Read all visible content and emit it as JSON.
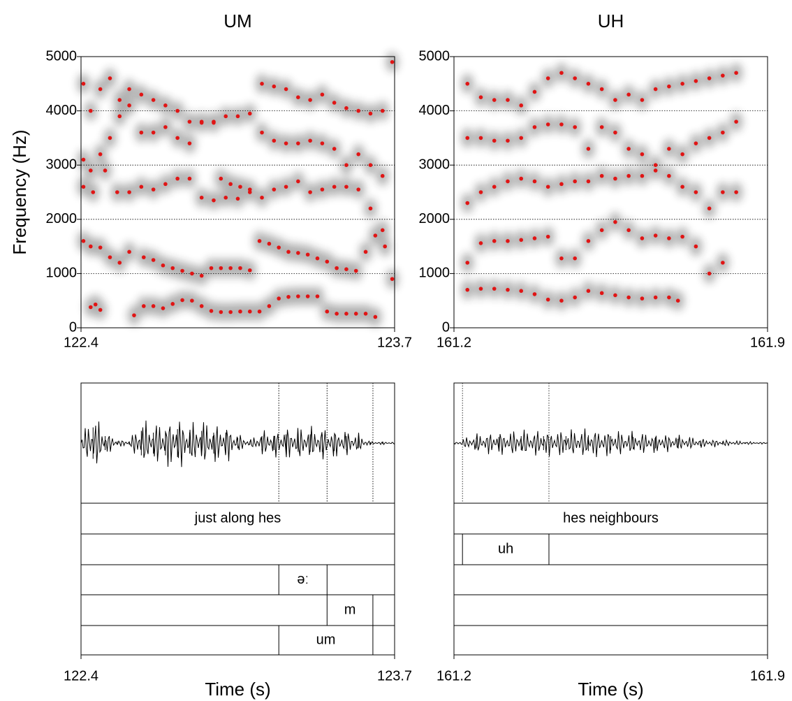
{
  "chart_data": [
    {
      "type": "spectrogram",
      "title": "UM",
      "y_label": "Frequency (Hz)",
      "x_label": "Time (s)",
      "xlim": [
        122.4,
        123.7
      ],
      "xticks": [
        122.4,
        123.7
      ],
      "ylim": [
        0,
        5000
      ],
      "yticks": [
        0,
        1000,
        2000,
        3000,
        4000,
        5000
      ],
      "grid": true,
      "point_color": "#e01515",
      "tracks": [
        {
          "x": [
            122.44,
            122.46,
            122.48,
            122.62,
            122.66,
            122.7,
            122.74,
            122.78,
            122.82,
            122.86,
            122.9,
            122.94,
            122.98,
            123.02,
            123.06,
            123.1,
            123.14,
            123.18,
            123.22,
            123.26,
            123.3,
            123.34,
            123.38,
            123.42,
            123.46,
            123.5,
            123.54,
            123.58,
            123.62
          ],
          "values": [
            380,
            430,
            330,
            230,
            400,
            400,
            360,
            440,
            510,
            500,
            400,
            310,
            290,
            290,
            300,
            300,
            300,
            400,
            540,
            570,
            580,
            580,
            580,
            300,
            260,
            260,
            260,
            260,
            200
          ]
        },
        {
          "x": [
            122.41,
            122.44,
            122.48,
            122.52,
            122.56,
            122.6,
            122.66,
            122.7,
            122.74,
            122.78,
            122.82,
            122.86,
            122.9,
            122.94,
            122.98,
            123.02,
            123.06,
            123.1,
            123.14,
            123.18,
            123.22,
            123.26,
            123.3,
            123.34,
            123.38,
            123.42,
            123.46,
            123.5,
            123.54,
            123.58,
            123.62,
            123.66,
            123.69
          ],
          "values": [
            1600,
            1500,
            1480,
            1300,
            1200,
            1400,
            1300,
            1250,
            1150,
            1100,
            1050,
            1000,
            960,
            1100,
            1100,
            1100,
            1100,
            1060,
            1600,
            1550,
            1480,
            1400,
            1380,
            1350,
            1280,
            1220,
            1100,
            1080,
            1050,
            1400,
            1700,
            1500,
            900
          ]
        },
        {
          "x": [
            122.41,
            122.45,
            122.5,
            122.55,
            122.6,
            122.65,
            122.7,
            122.75,
            122.8,
            122.85,
            122.9,
            122.95,
            123.0,
            123.05,
            123.1,
            123.15,
            123.2,
            123.25,
            123.3,
            123.35,
            123.4,
            123.45,
            123.5,
            123.55,
            123.6,
            123.65
          ],
          "values": [
            2600,
            2500,
            2900,
            2500,
            2500,
            2600,
            2550,
            2650,
            2750,
            2750,
            2400,
            2350,
            2400,
            2380,
            2500,
            2400,
            2550,
            2600,
            2700,
            2500,
            2550,
            2600,
            2600,
            2550,
            2200,
            1800
          ]
        },
        {
          "x": [
            122.98,
            123.02,
            123.06,
            123.1
          ],
          "values": [
            2750,
            2650,
            2600,
            2550
          ]
        },
        {
          "x": [
            122.41,
            122.44,
            122.48,
            122.52,
            122.56,
            122.6,
            122.65,
            122.7,
            122.75,
            122.8,
            122.85,
            122.9,
            122.95,
            123.0,
            123.05,
            123.1,
            123.15,
            123.2,
            123.25,
            123.3,
            123.35,
            123.4,
            123.45,
            123.5,
            123.55,
            123.6,
            123.65
          ],
          "values": [
            3100,
            2900,
            3200,
            3500,
            3900,
            4100,
            3600,
            3600,
            3700,
            3500,
            3400,
            3800,
            3800,
            3900,
            3900,
            3950,
            3600,
            3450,
            3400,
            3400,
            3450,
            3400,
            3300,
            3000,
            3200,
            3000,
            2800
          ]
        },
        {
          "x": [
            122.41,
            122.44,
            122.48,
            122.52,
            122.56,
            122.6,
            122.65,
            122.7,
            122.75,
            122.8,
            122.85,
            122.9,
            122.95,
            123.15,
            123.2,
            123.25,
            123.3,
            123.35,
            123.4,
            123.45,
            123.5,
            123.55,
            123.6,
            123.65,
            123.69
          ],
          "values": [
            4500,
            4000,
            4400,
            4600,
            4200,
            4400,
            4300,
            4200,
            4100,
            4000,
            3800,
            3780,
            3780,
            4500,
            4450,
            4400,
            4250,
            4200,
            4300,
            4150,
            4050,
            4000,
            3950,
            4000,
            4900
          ]
        }
      ],
      "waveform": {
        "x": [
          122.4,
          122.45,
          122.5,
          122.55,
          122.6,
          122.65,
          122.7,
          122.75,
          122.8,
          122.85,
          122.9,
          122.95,
          123.0,
          123.05,
          123.1,
          123.15,
          123.2,
          123.25,
          123.3,
          123.35,
          123.4,
          123.45,
          123.5,
          123.55,
          123.6,
          123.65,
          123.7
        ],
        "values": [
          0.2,
          0.9,
          0.4,
          0.1,
          0.1,
          0.7,
          0.6,
          0.7,
          0.8,
          0.6,
          0.7,
          0.6,
          0.6,
          0.3,
          0.1,
          0.4,
          0.4,
          0.5,
          0.5,
          0.5,
          0.5,
          0.45,
          0.4,
          0.3,
          0.05,
          0.05,
          0.03
        ]
      },
      "tiers": [
        {
          "boundaries": [],
          "intervals": [
            {
              "start": 122.4,
              "end": 123.7,
              "text": "just along hes"
            }
          ]
        },
        {
          "boundaries": [],
          "intervals": []
        },
        {
          "boundaries": [
            123.22,
            123.42
          ],
          "intervals": [
            {
              "start": 123.22,
              "end": 123.42,
              "text": "əː"
            }
          ]
        },
        {
          "boundaries": [
            123.42,
            123.61
          ],
          "intervals": [
            {
              "start": 123.42,
              "end": 123.61,
              "text": "m"
            }
          ]
        },
        {
          "boundaries": [
            123.22,
            123.61
          ],
          "intervals": [
            {
              "start": 123.22,
              "end": 123.61,
              "text": "um"
            }
          ]
        }
      ]
    },
    {
      "type": "spectrogram",
      "title": "UH",
      "x_label": "Time (s)",
      "xlim": [
        161.2,
        161.9
      ],
      "xticks": [
        161.2,
        161.9
      ],
      "ylim": [
        0,
        5000
      ],
      "yticks": [
        0,
        1000,
        2000,
        3000,
        4000,
        5000
      ],
      "grid": true,
      "point_color": "#e01515",
      "tracks": [
        {
          "x": [
            161.23,
            161.26,
            161.29,
            161.32,
            161.35,
            161.38,
            161.41,
            161.44,
            161.47,
            161.5,
            161.53,
            161.56,
            161.59,
            161.62,
            161.65,
            161.68,
            161.7
          ],
          "values": [
            700,
            720,
            720,
            700,
            680,
            620,
            520,
            500,
            560,
            680,
            640,
            600,
            560,
            540,
            560,
            560,
            500
          ]
        },
        {
          "x": [
            161.23,
            161.26,
            161.29,
            161.32,
            161.35,
            161.38,
            161.41,
            161.44,
            161.47,
            161.5,
            161.53,
            161.56,
            161.59,
            161.62,
            161.65,
            161.68,
            161.71,
            161.74,
            161.77,
            161.8
          ],
          "values": [
            1200,
            1560,
            1600,
            1600,
            1620,
            1650,
            1680,
            1280,
            1280,
            1600,
            1800,
            1950,
            1800,
            1650,
            1700,
            1650,
            1680,
            1500,
            1000,
            1200
          ]
        },
        {
          "x": [
            161.23,
            161.26,
            161.29,
            161.32,
            161.35,
            161.38,
            161.41,
            161.44,
            161.47,
            161.5,
            161.53,
            161.56,
            161.59,
            161.62,
            161.65,
            161.68,
            161.71,
            161.74,
            161.77,
            161.8,
            161.83
          ],
          "values": [
            2300,
            2500,
            2600,
            2700,
            2750,
            2700,
            2600,
            2650,
            2700,
            2700,
            2800,
            2750,
            2800,
            2800,
            2900,
            2800,
            2600,
            2500,
            2200,
            2500,
            2500
          ]
        },
        {
          "x": [
            161.23,
            161.26,
            161.29,
            161.32,
            161.35,
            161.38,
            161.41,
            161.44,
            161.47,
            161.5,
            161.53,
            161.56,
            161.59,
            161.62,
            161.65,
            161.68,
            161.71,
            161.74,
            161.77,
            161.8,
            161.83
          ],
          "values": [
            3500,
            3500,
            3450,
            3450,
            3500,
            3700,
            3750,
            3750,
            3700,
            3300,
            3700,
            3600,
            3300,
            3200,
            3000,
            3300,
            3200,
            3400,
            3500,
            3600,
            3800
          ]
        },
        {
          "x": [
            161.23,
            161.26,
            161.29,
            161.32,
            161.35,
            161.38,
            161.41,
            161.44,
            161.47,
            161.5,
            161.53,
            161.56,
            161.59,
            161.62,
            161.65,
            161.68,
            161.71,
            161.74,
            161.77,
            161.8,
            161.83
          ],
          "values": [
            4500,
            4250,
            4200,
            4200,
            4100,
            4350,
            4600,
            4700,
            4600,
            4500,
            4400,
            4200,
            4300,
            4200,
            4400,
            4450,
            4500,
            4550,
            4600,
            4650,
            4700
          ]
        }
      ],
      "waveform": {
        "x": [
          161.2,
          161.25,
          161.3,
          161.35,
          161.4,
          161.45,
          161.5,
          161.55,
          161.6,
          161.65,
          161.7,
          161.75,
          161.8,
          161.85,
          161.9
        ],
        "values": [
          0.02,
          0.3,
          0.35,
          0.4,
          0.4,
          0.4,
          0.45,
          0.4,
          0.35,
          0.3,
          0.25,
          0.15,
          0.1,
          0.05,
          0.02
        ]
      },
      "tiers": [
        {
          "boundaries": [],
          "intervals": [
            {
              "start": 161.2,
              "end": 161.9,
              "text": "hes neighbours"
            }
          ]
        },
        {
          "boundaries": [
            161.219,
            161.412
          ],
          "intervals": [
            {
              "start": 161.219,
              "end": 161.412,
              "text": "uh"
            }
          ]
        },
        {
          "boundaries": [],
          "intervals": []
        },
        {
          "boundaries": [],
          "intervals": []
        },
        {
          "boundaries": [],
          "intervals": []
        }
      ]
    }
  ]
}
